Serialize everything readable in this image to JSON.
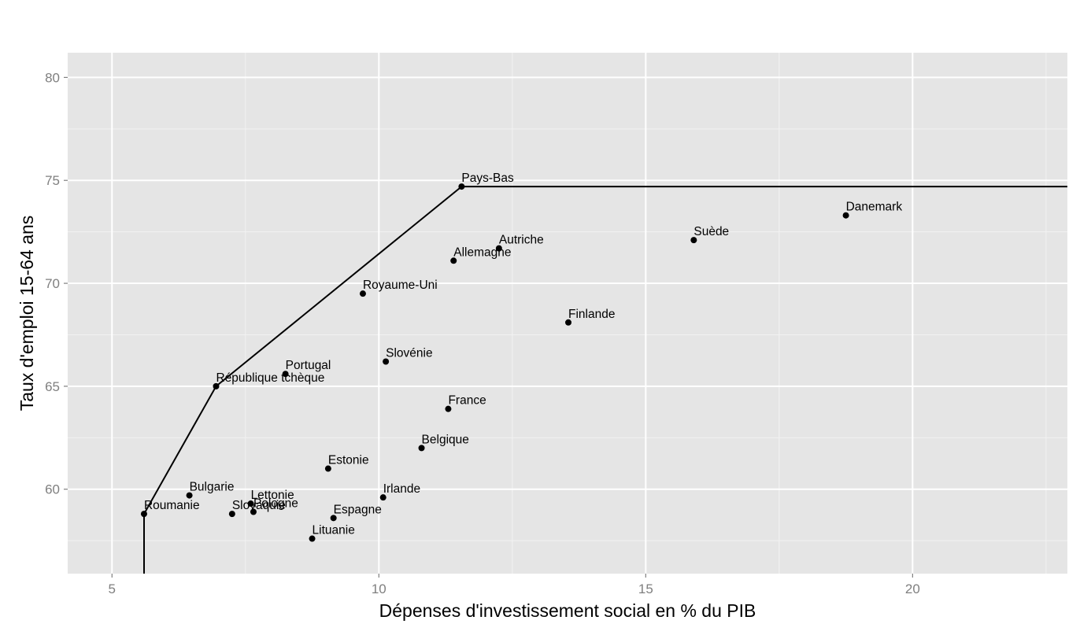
{
  "chart_data": {
    "type": "scatter",
    "title": "",
    "xlabel": "Dépenses d'investissement social en % du PIB",
    "ylabel": "Taux d'emploi 15-64 ans",
    "xlim": [
      4.17,
      22.9
    ],
    "ylim": [
      55.9,
      81.2
    ],
    "x_ticks": [
      5,
      10,
      15,
      20
    ],
    "y_ticks": [
      60,
      65,
      70,
      75,
      80
    ],
    "grid": true,
    "legend": "none",
    "colors": {
      "panel": "#e5e5e5",
      "grid_major": "#ffffff",
      "grid_minor": "#f2f2f2",
      "points": "#000000",
      "frontier": "#000000"
    },
    "points": [
      {
        "label": "Roumanie",
        "x": 5.6,
        "y": 58.8
      },
      {
        "label": "Bulgarie",
        "x": 6.45,
        "y": 59.7
      },
      {
        "label": "République tchèque",
        "x": 6.95,
        "y": 65.0
      },
      {
        "label": "Slovaquie",
        "x": 7.25,
        "y": 58.8
      },
      {
        "label": "Lettonie",
        "x": 7.6,
        "y": 59.3
      },
      {
        "label": "Pologne",
        "x": 7.65,
        "y": 58.9
      },
      {
        "label": "Portugal",
        "x": 8.25,
        "y": 65.6
      },
      {
        "label": "Lituanie",
        "x": 8.75,
        "y": 57.6
      },
      {
        "label": "Estonie",
        "x": 9.05,
        "y": 61.0
      },
      {
        "label": "Espagne",
        "x": 9.15,
        "y": 58.6
      },
      {
        "label": "Royaume-Uni",
        "x": 9.7,
        "y": 69.5
      },
      {
        "label": "Irlande",
        "x": 10.08,
        "y": 59.6
      },
      {
        "label": "Slovénie",
        "x": 10.13,
        "y": 66.2
      },
      {
        "label": "Belgique",
        "x": 10.8,
        "y": 62.0
      },
      {
        "label": "France",
        "x": 11.3,
        "y": 63.9
      },
      {
        "label": "Allemagne",
        "x": 11.4,
        "y": 71.1
      },
      {
        "label": "Pays-Bas",
        "x": 11.55,
        "y": 74.7
      },
      {
        "label": "Autriche",
        "x": 12.25,
        "y": 71.7
      },
      {
        "label": "Finlande",
        "x": 13.55,
        "y": 68.1
      },
      {
        "label": "Suède",
        "x": 15.9,
        "y": 72.1
      },
      {
        "label": "Danemark",
        "x": 18.75,
        "y": 73.3
      }
    ],
    "frontier": {
      "x": [
        5.6,
        5.6,
        6.95,
        11.55,
        22.9
      ],
      "y": [
        55.9,
        58.8,
        65.0,
        74.7,
        74.7
      ]
    }
  }
}
